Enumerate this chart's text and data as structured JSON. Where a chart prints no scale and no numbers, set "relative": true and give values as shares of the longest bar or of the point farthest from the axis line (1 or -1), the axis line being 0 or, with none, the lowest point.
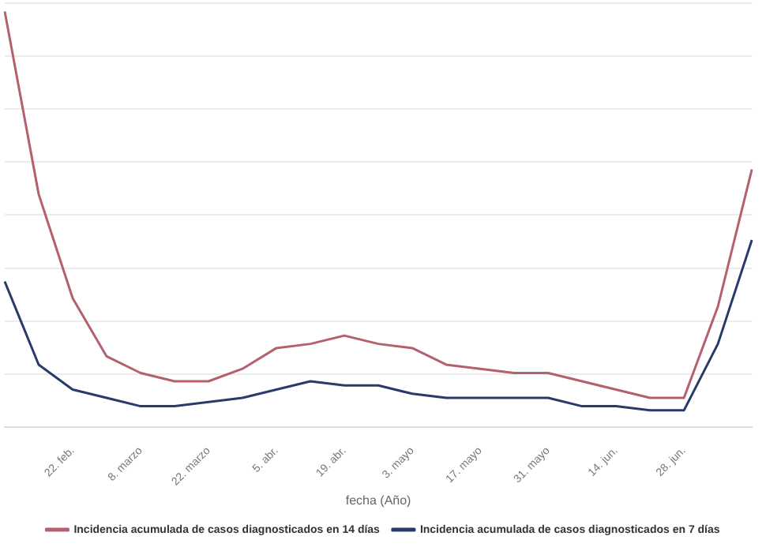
{
  "chart_data": {
    "type": "line",
    "relative": true,
    "xlabel": "fecha (Año)",
    "categories": [
      null,
      null,
      "22. feb.",
      null,
      "8. marzo",
      null,
      "22. marzo",
      null,
      "5. abr.",
      null,
      "19. abr.",
      null,
      "3. mayo",
      null,
      "17. mayo",
      null,
      "31. mayo",
      null,
      "14. jun.",
      null,
      "28. jun.",
      null,
      null
    ],
    "series": [
      {
        "name": "Incidencia acumulada de casos diagnosticados en 14 días",
        "color": "#b5606f",
        "values": [
          1,
          0.56,
          0.31,
          0.17,
          0.13,
          0.11,
          0.11,
          0.14,
          0.19,
          0.2,
          0.22,
          0.2,
          0.19,
          0.15,
          0.14,
          0.13,
          0.13,
          0.11,
          0.09,
          0.07,
          0.07,
          0.29,
          0.62
        ]
      },
      {
        "name": "Incidencia acumulada de casos diagnosticados en 7 días",
        "color": "#2a3b6b",
        "values": [
          0.35,
          0.15,
          0.09,
          0.07,
          0.05,
          0.05,
          0.06,
          0.07,
          0.09,
          0.11,
          0.1,
          0.1,
          0.08,
          0.07,
          0.07,
          0.07,
          0.07,
          0.05,
          0.05,
          0.04,
          0.04,
          0.2,
          0.45
        ]
      }
    ],
    "grid": "y",
    "legend": "bottom",
    "marker": "none",
    "line_style": "solid"
  }
}
